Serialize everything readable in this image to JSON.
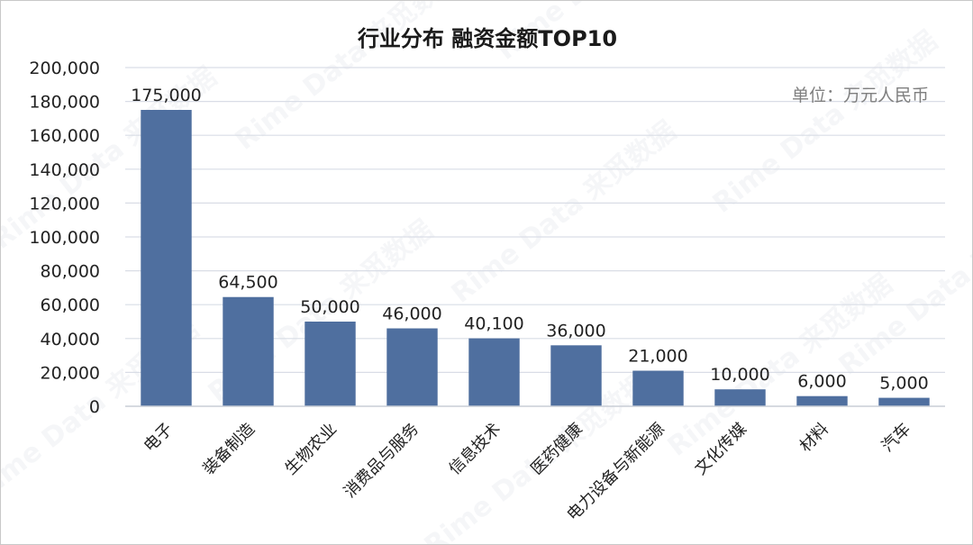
{
  "chart_data": {
    "type": "bar",
    "title": "行业分布 融资金额TOP10",
    "unit_note": "单位：万元人民币",
    "categories": [
      "电子",
      "装备制造",
      "生物农业",
      "消费品与服务",
      "信息技术",
      "医药健康",
      "电力设备与新能源",
      "文化传媒",
      "材料",
      "汽车"
    ],
    "values": [
      175000,
      64500,
      50000,
      46000,
      40100,
      36000,
      21000,
      10000,
      6000,
      5000
    ],
    "data_labels": [
      "175,000",
      "64,500",
      "50,000",
      "46,000",
      "40,100",
      "36,000",
      "21,000",
      "10,000",
      "6,000",
      "5,000"
    ],
    "yticks": [
      "0",
      "20,000",
      "40,000",
      "60,000",
      "80,000",
      "100,000",
      "120,000",
      "140,000",
      "160,000",
      "180,000",
      "200,000"
    ],
    "ylim": [
      0,
      200000
    ],
    "ytick_step": 20000,
    "grid": true,
    "bar_color": "#4f6f9f",
    "grid_color": "#d9dde6"
  }
}
